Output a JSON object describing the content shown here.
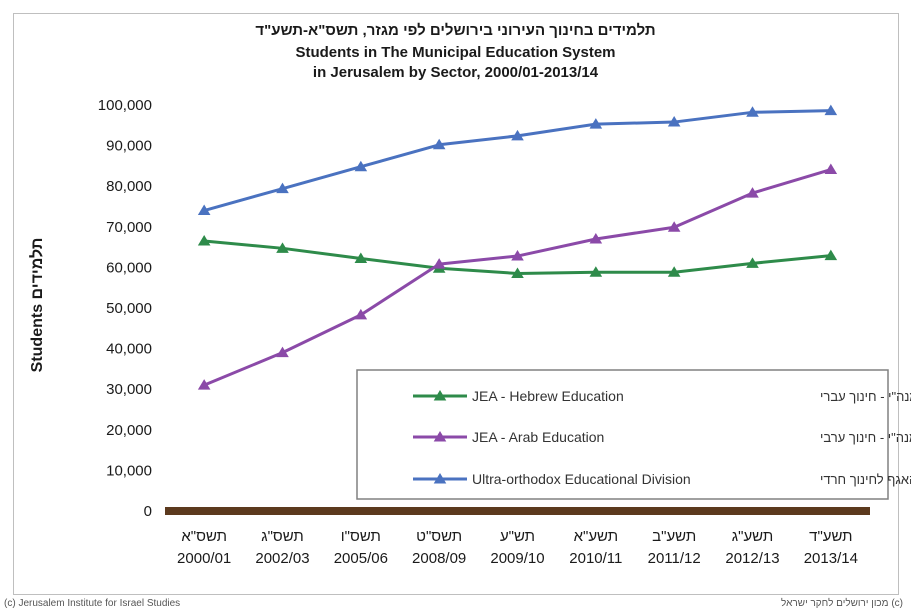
{
  "title_he": "תלמידים בחינוך העירוני בירושלים לפי מגזר, תשס\"א-תשע\"ד",
  "title_en_line1": "Students in The Municipal Education System",
  "title_en_line2": "in Jerusalem by Sector, 2000/01-2013/14",
  "footer_left": "(c) Jerusalem Institute for Israel Studies",
  "footer_right": "(c) מכון ירושלים לחקר ישראל",
  "chart_data": {
    "type": "line",
    "title": "תלמידים בחינוך העירוני בירושלים לפי מגזר, תשס\"א-תשע\"ד / Students in The Municipal Education System in Jerusalem by Sector, 2000/01-2013/14",
    "ylabel": "Students  תלמידים",
    "xlabel": "",
    "ylim": [
      0,
      100000
    ],
    "yticks": [
      "0",
      "10,000",
      "20,000",
      "30,000",
      "40,000",
      "50,000",
      "60,000",
      "70,000",
      "80,000",
      "90,000",
      "100,000"
    ],
    "categories_he": [
      "תשס\"א",
      "תשס\"ג",
      "תשס\"ו",
      "תשס\"ט",
      "תש\"ע",
      "תשע\"א",
      "תשע\"ב",
      "תשע\"ג",
      "תשע\"ד"
    ],
    "categories": [
      "2000/01",
      "2002/03",
      "2005/06",
      "2008/09",
      "2009/10",
      "2010/11",
      "2011/12",
      "2012/13",
      "2013/14"
    ],
    "grid": false,
    "legend_position": "bottom-right",
    "series": [
      {
        "name": "JEA - Hebrew Education",
        "name_he": "מנה\"י - חינוך עברי",
        "color": "#2e8b4a",
        "values": [
          66500,
          64700,
          62200,
          59800,
          58500,
          58800,
          58800,
          61000,
          62900
        ]
      },
      {
        "name": "JEA - Arab Education",
        "name_he": "מנה\"י - חינוך ערבי",
        "color": "#8b4aa8",
        "values": [
          31000,
          39000,
          48300,
          60800,
          62800,
          67000,
          69900,
          78300,
          84100
        ]
      },
      {
        "name": "Ultra-orthodox Educational Division",
        "name_he": "האגף לחינוך חרדי",
        "color": "#4a72c0",
        "values": [
          74000,
          79400,
          84800,
          90200,
          92400,
          95300,
          95800,
          98200,
          98600
        ]
      }
    ],
    "colors": {
      "baseline": "#5c3a1e",
      "axis_text": "#1a1a1a",
      "legend_border": "#808080"
    }
  }
}
